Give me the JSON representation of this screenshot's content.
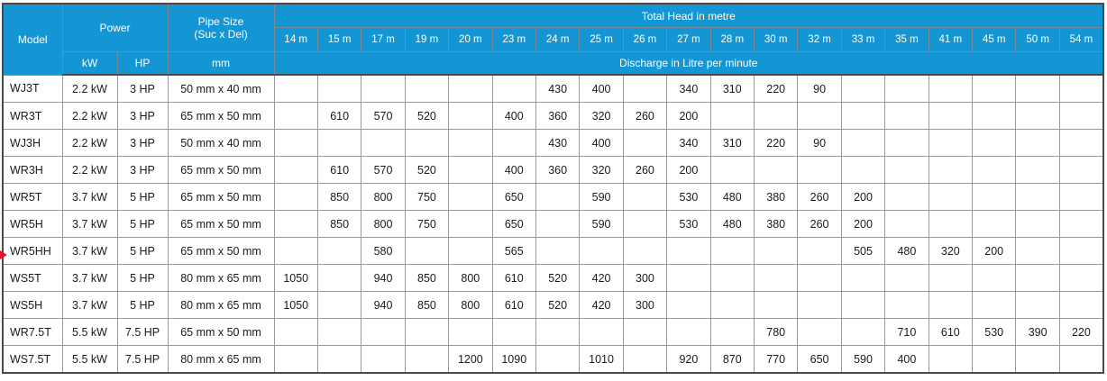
{
  "header": {
    "model": "Model",
    "power": "Power",
    "power_kw": "kW",
    "power_hp": "HP",
    "pipe_size_line1": "Pipe Size",
    "pipe_size_line2": "(Suc x Del)",
    "pipe_unit": "mm",
    "total_head": "Total Head in metre",
    "discharge": "Discharge in Litre per minute",
    "head_columns": [
      "14 m",
      "15 m",
      "17 m",
      "19 m",
      "20 m",
      "23 m",
      "24 m",
      "25 m",
      "26 m",
      "27 m",
      "28 m",
      "30 m",
      "32 m",
      "33 m",
      "35 m",
      "41 m",
      "45 m",
      "50 m",
      "54 m"
    ]
  },
  "rows": [
    {
      "model": "WJ3T",
      "kw": "2.2 kW",
      "hp": "3 HP",
      "pipe": "50 mm x 40 mm",
      "values": [
        "",
        "",
        "",
        "",
        "",
        "",
        "430",
        "400",
        "",
        "340",
        "310",
        "220",
        "90",
        "",
        "",
        "",
        "",
        "",
        ""
      ]
    },
    {
      "model": "WR3T",
      "kw": "2.2 kW",
      "hp": "3 HP",
      "pipe": "65 mm x 50 mm",
      "values": [
        "",
        "610",
        "570",
        "520",
        "",
        "400",
        "360",
        "320",
        "260",
        "200",
        "",
        "",
        "",
        "",
        "",
        "",
        "",
        "",
        ""
      ]
    },
    {
      "model": "WJ3H",
      "kw": "2.2 kW",
      "hp": "3 HP",
      "pipe": "50 mm x 40 mm",
      "values": [
        "",
        "",
        "",
        "",
        "",
        "",
        "430",
        "400",
        "",
        "340",
        "310",
        "220",
        "90",
        "",
        "",
        "",
        "",
        "",
        ""
      ]
    },
    {
      "model": "WR3H",
      "kw": "2.2 kW",
      "hp": "3 HP",
      "pipe": "65 mm x 50 mm",
      "values": [
        "",
        "610",
        "570",
        "520",
        "",
        "400",
        "360",
        "320",
        "260",
        "200",
        "",
        "",
        "",
        "",
        "",
        "",
        "",
        "",
        ""
      ]
    },
    {
      "model": "WR5T",
      "kw": "3.7 kW",
      "hp": "5 HP",
      "pipe": "65 mm x 50 mm",
      "values": [
        "",
        "850",
        "800",
        "750",
        "",
        "650",
        "",
        "590",
        "",
        "530",
        "480",
        "380",
        "260",
        "200",
        "",
        "",
        "",
        "",
        ""
      ]
    },
    {
      "model": "WR5H",
      "kw": "3.7 kW",
      "hp": "5 HP",
      "pipe": "65 mm x 50 mm",
      "values": [
        "",
        "850",
        "800",
        "750",
        "",
        "650",
        "",
        "590",
        "",
        "530",
        "480",
        "380",
        "260",
        "200",
        "",
        "",
        "",
        "",
        ""
      ]
    },
    {
      "model": "WR5HH",
      "kw": "3.7 kW",
      "hp": "5 HP",
      "pipe": "65 mm x 50 mm",
      "values": [
        "",
        "",
        "580",
        "",
        "",
        "565",
        "",
        "",
        "",
        "",
        "",
        "",
        "",
        "505",
        "480",
        "320",
        "200",
        "",
        ""
      ]
    },
    {
      "model": "WS5T",
      "kw": "3.7 kW",
      "hp": "5 HP",
      "pipe": "80 mm x 65 mm",
      "values": [
        "1050",
        "",
        "940",
        "850",
        "800",
        "610",
        "520",
        "420",
        "300",
        "",
        "",
        "",
        "",
        "",
        "",
        "",
        "",
        "",
        ""
      ]
    },
    {
      "model": "WS5H",
      "kw": "3.7 kW",
      "hp": "5 HP",
      "pipe": "80 mm x 65 mm",
      "values": [
        "1050",
        "",
        "940",
        "850",
        "800",
        "610",
        "520",
        "420",
        "300",
        "",
        "",
        "",
        "",
        "",
        "",
        "",
        "",
        "",
        ""
      ]
    },
    {
      "model": "WR7.5T",
      "kw": "5.5 kW",
      "hp": "7.5 HP",
      "pipe": "65 mm x 50 mm",
      "values": [
        "",
        "",
        "",
        "",
        "",
        "",
        "",
        "",
        "",
        "",
        "",
        "780",
        "",
        "",
        "710",
        "610",
        "530",
        "390",
        "220"
      ]
    },
    {
      "model": "WS7.5T",
      "kw": "5.5 kW",
      "hp": "7.5 HP",
      "pipe": "80 mm x 65 mm",
      "values": [
        "",
        "",
        "",
        "",
        "1200",
        "1090",
        "",
        "1010",
        "",
        "920",
        "870",
        "770",
        "650",
        "590",
        "400",
        "",
        "",
        "",
        ""
      ]
    }
  ],
  "marker": {
    "target_row": "WR5HH",
    "icon": "red-right-arrow",
    "color": "#e8112d"
  },
  "colors": {
    "header_blue": "#1596d4",
    "header_border": "#7e8b96",
    "body_border": "#999999",
    "outer_border": "#4a4a4a"
  }
}
